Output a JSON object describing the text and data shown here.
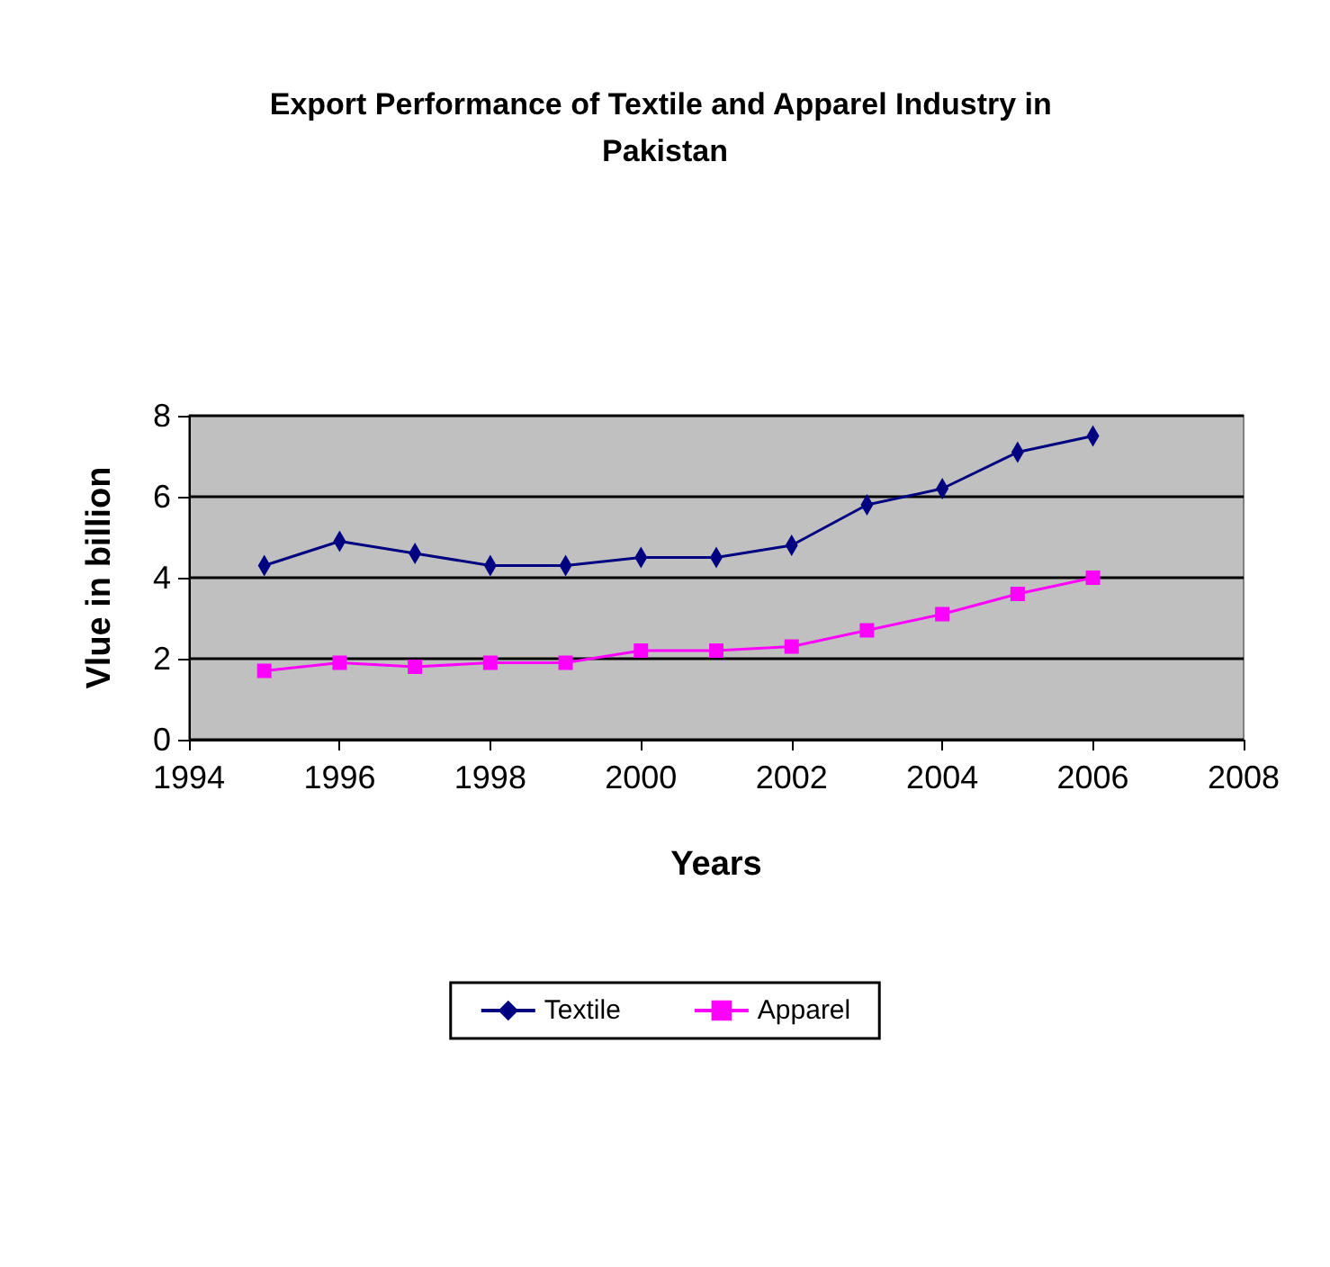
{
  "chart_data": {
    "type": "line",
    "title": "Export Performance of Textile and Apparel Industry in Pakistan",
    "xlabel": "Years",
    "ylabel": "Vlue in billion",
    "x": [
      1995,
      1996,
      1997,
      1998,
      1999,
      2000,
      2001,
      2002,
      2003,
      2004,
      2005,
      2006
    ],
    "series": [
      {
        "name": "Textile",
        "color": "#000080",
        "marker": "diamond",
        "values": [
          4.3,
          4.9,
          4.6,
          4.3,
          4.3,
          4.5,
          4.5,
          4.8,
          5.8,
          6.2,
          7.1,
          7.5
        ]
      },
      {
        "name": "Apparel",
        "color": "#ff00ff",
        "marker": "square",
        "values": [
          1.7,
          1.9,
          1.8,
          1.9,
          1.9,
          2.2,
          2.2,
          2.3,
          2.7,
          3.1,
          3.6,
          4.0
        ]
      }
    ],
    "xlim": [
      1994,
      2008
    ],
    "xticks": [
      1994,
      1996,
      1998,
      2000,
      2002,
      2004,
      2006,
      2008
    ],
    "ylim": [
      0,
      8
    ],
    "yticks": [
      0,
      2,
      4,
      6,
      8
    ],
    "grid": "y",
    "legend": "bottom"
  }
}
